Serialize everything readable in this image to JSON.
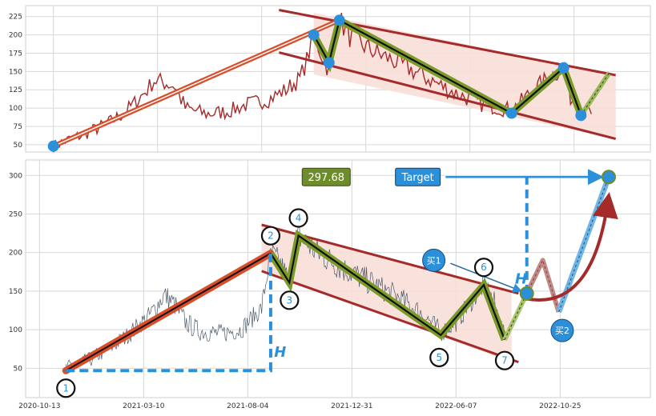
{
  "colors": {
    "price_top": "#a52a2a",
    "price_bottom": "#4a5a6a",
    "channel": "#a52a2a",
    "channel_fill": "#f8ded8",
    "rise": "#d94e2a",
    "zigzag_fill": "#7a9a2a",
    "marker": "#2b90d9",
    "grid": "#d8d8d8",
    "value_box": "#6d8d2a",
    "target_box": "#2b90d9",
    "arrow_red": "#a52a2a"
  },
  "top_panel": {
    "y_ticks": [
      50,
      75,
      100,
      125,
      150,
      175,
      200,
      225
    ],
    "ylim": [
      40,
      240
    ],
    "xlim": [
      0,
      900
    ],
    "x_grid": [
      40,
      190,
      340,
      490,
      640,
      790
    ]
  },
  "bottom_panel": {
    "y_ticks": [
      50,
      100,
      150,
      200,
      250,
      300
    ],
    "ylim": [
      12,
      320
    ],
    "xlim": [
      0,
      900
    ],
    "x_ticks": [
      {
        "t": 20,
        "label": "2020-10-13"
      },
      {
        "t": 170,
        "label": "2021-03-10"
      },
      {
        "t": 320,
        "label": "2021-08-04"
      },
      {
        "t": 470,
        "label": "2021-12-31"
      },
      {
        "t": 620,
        "label": "2022-06-07"
      },
      {
        "t": 770,
        "label": "2022-10-25"
      }
    ],
    "value_label": "297.68",
    "target_label": "Target",
    "h_label": "H",
    "buy1_label": "买1",
    "buy2_label": "买2",
    "points": [
      {
        "n": "1",
        "t": 58,
        "v": 47
      },
      {
        "n": "2",
        "t": 353,
        "v": 199
      },
      {
        "n": "3",
        "t": 380,
        "v": 161
      },
      {
        "n": "4",
        "t": 393,
        "v": 222
      },
      {
        "n": "5",
        "t": 598,
        "v": 93
      },
      {
        "n": "6",
        "t": 660,
        "v": 158
      },
      {
        "n": "7",
        "t": 690,
        "v": 87
      }
    ]
  },
  "chart_data": [
    {
      "type": "line",
      "series": [
        {
          "values": [
            [
              40,
              48
            ],
            [
              60,
              56
            ],
            [
              80,
              63
            ],
            [
              100,
              71
            ],
            [
              120,
              80
            ],
            [
              140,
              92
            ],
            [
              160,
              110
            ],
            [
              175,
              125
            ],
            [
              185,
              138
            ],
            [
              200,
              135
            ],
            [
              215,
              130
            ],
            [
              230,
              100
            ],
            [
              260,
              92
            ],
            [
              290,
              95
            ],
            [
              320,
              105
            ],
            [
              350,
              112
            ],
            [
              375,
              125
            ],
            [
              395,
              140
            ],
            [
              405,
              165
            ],
            [
              415,
              200
            ],
            [
              428,
              170
            ],
            [
              437,
              152
            ],
            [
              452,
              220
            ],
            [
              470,
              195
            ],
            [
              500,
              178
            ],
            [
              540,
              160
            ],
            [
              580,
              140
            ],
            [
              620,
              120
            ],
            [
              660,
              105
            ],
            [
              700,
              97
            ],
            [
              720,
              115
            ],
            [
              750,
              140
            ],
            [
              775,
              155
            ],
            [
              785,
              115
            ],
            [
              800,
              100
            ],
            [
              815,
              92
            ]
          ]
        }
      ]
    },
    {
      "type": "line",
      "series": [
        {
          "values": [
            [
              58,
              50
            ],
            [
              90,
              60
            ],
            [
              120,
              75
            ],
            [
              150,
              95
            ],
            [
              180,
              120
            ],
            [
              200,
              145
            ],
            [
              215,
              132
            ],
            [
              230,
              110
            ],
            [
              250,
              98
            ],
            [
              280,
              95
            ],
            [
              310,
              100
            ],
            [
              340,
              128
            ],
            [
              353,
              199
            ],
            [
              367,
              185
            ],
            [
              380,
              161
            ],
            [
              393,
              222
            ],
            [
              420,
              200
            ],
            [
              460,
              178
            ],
            [
              500,
              160
            ],
            [
              540,
              140
            ],
            [
              575,
              118
            ],
            [
              598,
              96
            ],
            [
              620,
              110
            ],
            [
              660,
              158
            ],
            [
              675,
              135
            ],
            [
              690,
              87
            ]
          ]
        }
      ]
    }
  ]
}
